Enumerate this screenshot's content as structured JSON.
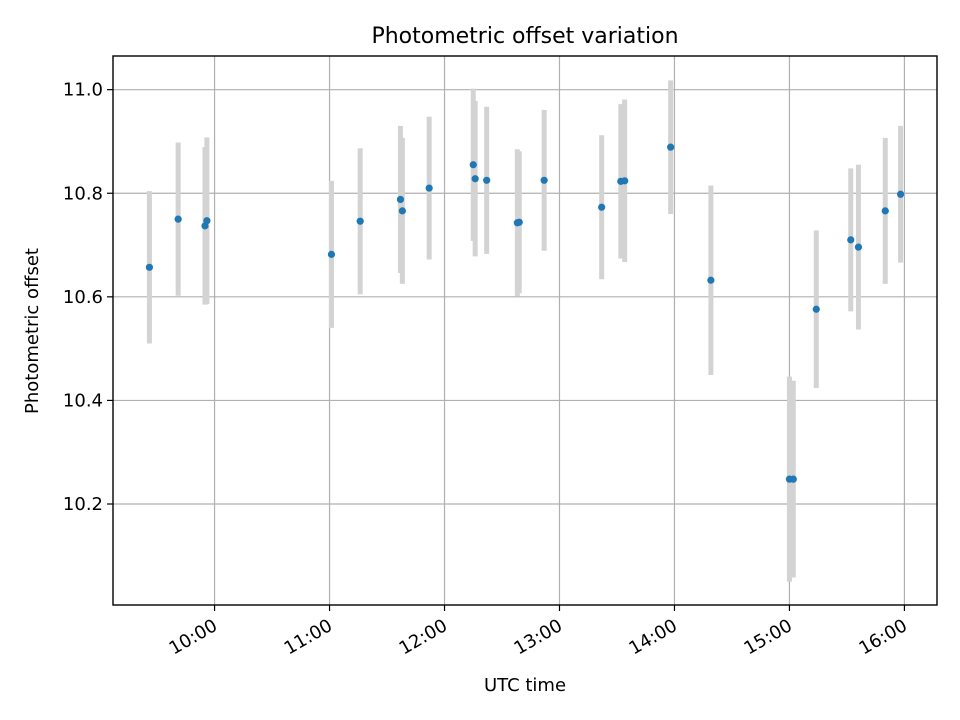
{
  "chart_data": {
    "type": "scatter",
    "title": "Photometric offset variation",
    "xlabel": "UTC time",
    "ylabel": "Photometric offset",
    "xlim": [
      "09:07",
      "16:17"
    ],
    "ylim": [
      10.005,
      11.065
    ],
    "x_ticks": [
      "10:00",
      "11:00",
      "12:00",
      "13:00",
      "14:00",
      "15:00",
      "16:00"
    ],
    "y_ticks": [
      "10.2",
      "10.4",
      "10.6",
      "10.8",
      "11.0"
    ],
    "grid": true,
    "colors": {
      "points": "#1f77b4",
      "error_bars": "#d3d3d3",
      "grid": "#b0b0b0"
    },
    "series": [
      {
        "points": [
          {
            "x": "09:26",
            "y": 10.657,
            "err": 0.147
          },
          {
            "x": "09:41",
            "y": 10.75,
            "err": 0.148
          },
          {
            "x": "09:55",
            "y": 10.737,
            "err": 0.152
          },
          {
            "x": "09:56",
            "y": 10.747,
            "err": 0.161
          },
          {
            "x": "11:01",
            "y": 10.682,
            "err": 0.142
          },
          {
            "x": "11:16",
            "y": 10.746,
            "err": 0.141
          },
          {
            "x": "11:37",
            "y": 10.788,
            "err": 0.142
          },
          {
            "x": "11:38",
            "y": 10.766,
            "err": 0.141
          },
          {
            "x": "11:52",
            "y": 10.81,
            "err": 0.138
          },
          {
            "x": "12:15",
            "y": 10.855,
            "err": 0.147
          },
          {
            "x": "12:16",
            "y": 10.828,
            "err": 0.15
          },
          {
            "x": "12:22",
            "y": 10.825,
            "err": 0.142
          },
          {
            "x": "12:38",
            "y": 10.743,
            "err": 0.142
          },
          {
            "x": "12:39",
            "y": 10.744,
            "err": 0.137
          },
          {
            "x": "12:52",
            "y": 10.825,
            "err": 0.136
          },
          {
            "x": "13:22",
            "y": 10.773,
            "err": 0.139
          },
          {
            "x": "13:32",
            "y": 10.823,
            "err": 0.149
          },
          {
            "x": "13:34",
            "y": 10.824,
            "err": 0.157
          },
          {
            "x": "13:58",
            "y": 10.889,
            "err": 0.129
          },
          {
            "x": "14:19",
            "y": 10.632,
            "err": 0.183
          },
          {
            "x": "15:00",
            "y": 10.248,
            "err": 0.198
          },
          {
            "x": "15:02",
            "y": 10.248,
            "err": 0.19
          },
          {
            "x": "15:14",
            "y": 10.576,
            "err": 0.152
          },
          {
            "x": "15:32",
            "y": 10.71,
            "err": 0.138
          },
          {
            "x": "15:36",
            "y": 10.696,
            "err": 0.159
          },
          {
            "x": "15:50",
            "y": 10.766,
            "err": 0.141
          },
          {
            "x": "15:58",
            "y": 10.798,
            "err": 0.132
          }
        ]
      }
    ]
  }
}
